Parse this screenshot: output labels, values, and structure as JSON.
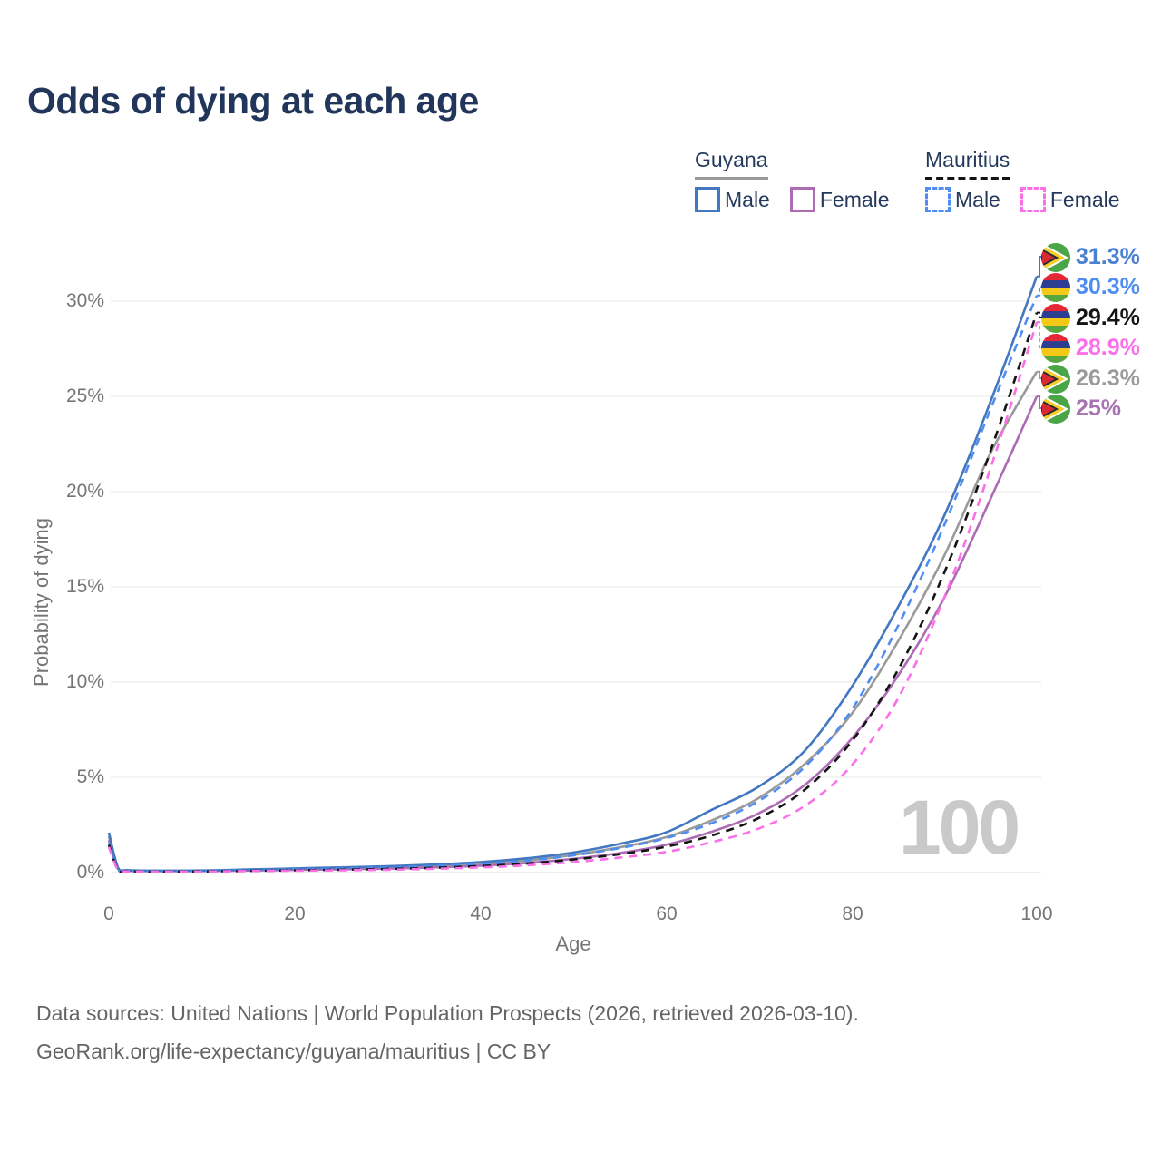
{
  "title": "Odds of dying at each age",
  "legend": {
    "guyana": {
      "label": "Guyana",
      "male_label": "Male",
      "female_label": "Female"
    },
    "mauritius": {
      "label": "Mauritius",
      "male_label": "Male",
      "female_label": "Female"
    }
  },
  "axes": {
    "y_title": "Probability of dying",
    "x_title": "Age",
    "y_tick_labels": [
      "0%",
      "5%",
      "10%",
      "15%",
      "20%",
      "25%",
      "30%"
    ],
    "x_tick_labels": [
      "0",
      "20",
      "40",
      "60",
      "80",
      "100"
    ]
  },
  "watermark": "100",
  "footer": {
    "line1": "Data sources: United Nations | World Population Prospects (2026, retrieved 2026-03-10).",
    "line2": "GeoRank.org/life-expectancy/guyana/mauritius | CC BY"
  },
  "colors": {
    "title_text": "#21365a",
    "legend_text": "#24395c",
    "axis_text": "#757575",
    "gridline": "#efefef",
    "zero_gridline": "#e7e7e7",
    "watermark": "#c9c9c9",
    "footer_text": "#656565"
  },
  "chart_data": {
    "type": "line",
    "title": "Odds of dying at each age",
    "xlabel": "Age",
    "ylabel": "Probability of dying",
    "x_range": [
      0,
      100
    ],
    "y_range_percent": [
      0,
      32
    ],
    "x_ticks": [
      0,
      20,
      40,
      60,
      80,
      100
    ],
    "y_ticks_percent": [
      0,
      5,
      10,
      15,
      20,
      25,
      30
    ],
    "grid": "horizontal only, every 5%",
    "legend_position": "top-right",
    "hovered_age_watermark": "100",
    "x_ages": [
      0,
      1,
      2,
      5,
      10,
      15,
      20,
      25,
      30,
      35,
      40,
      45,
      50,
      55,
      60,
      65,
      70,
      75,
      80,
      85,
      90,
      95,
      100
    ],
    "series": [
      {
        "name": "Guyana — Male",
        "country": "Guyana",
        "sex": "male",
        "style": "solid",
        "color": "#4277c2",
        "label_color": "#4a80d2",
        "flag": "guyana",
        "end_label": "31.3%",
        "end_value_percent": 31.3,
        "values_percent": [
          2.1,
          0.25,
          0.13,
          0.1,
          0.11,
          0.16,
          0.22,
          0.27,
          0.33,
          0.42,
          0.55,
          0.75,
          1.05,
          1.5,
          2.1,
          3.3,
          4.5,
          6.4,
          9.7,
          13.9,
          18.7,
          24.7,
          31.3
        ]
      },
      {
        "name": "Mauritius — Male",
        "country": "Mauritius",
        "sex": "male",
        "style": "dashed",
        "color": "#4f8df2",
        "label_color": "#4f8df2",
        "flag": "mauritius",
        "end_label": "30.3%",
        "end_value_percent": 30.3,
        "values_percent": [
          1.55,
          0.15,
          0.08,
          0.06,
          0.08,
          0.12,
          0.17,
          0.21,
          0.26,
          0.34,
          0.45,
          0.62,
          0.9,
          1.28,
          1.8,
          2.6,
          3.75,
          5.55,
          8.5,
          12.9,
          18.2,
          24.3,
          30.3
        ]
      },
      {
        "name": "Mauritius — Both sexes",
        "country": "Mauritius",
        "sex": "both",
        "style": "dashed",
        "color": "#141414",
        "label_color": "#141414",
        "flag": "mauritius",
        "end_label": "29.4%",
        "end_value_percent": 29.4,
        "values_percent": [
          1.45,
          0.13,
          0.07,
          0.05,
          0.06,
          0.09,
          0.12,
          0.15,
          0.19,
          0.25,
          0.34,
          0.47,
          0.68,
          0.96,
          1.35,
          1.95,
          2.85,
          4.35,
          6.85,
          10.6,
          15.7,
          22.1,
          29.4
        ]
      },
      {
        "name": "Mauritius — Female",
        "country": "Mauritius",
        "sex": "female",
        "style": "dashed",
        "color": "#fb6fe8",
        "label_color": "#fb6fe8",
        "flag": "mauritius",
        "end_label": "28.9%",
        "end_value_percent": 28.9,
        "values_percent": [
          1.35,
          0.12,
          0.06,
          0.05,
          0.05,
          0.08,
          0.1,
          0.12,
          0.15,
          0.2,
          0.27,
          0.38,
          0.55,
          0.78,
          1.08,
          1.6,
          2.3,
          3.5,
          5.6,
          9.1,
          14.4,
          21.2,
          28.9
        ]
      },
      {
        "name": "Guyana — Both sexes",
        "country": "Guyana",
        "sex": "both",
        "style": "solid",
        "color": "#9a9a9a",
        "label_color": "#9a9a9a",
        "flag": "guyana",
        "end_label": "26.3%",
        "end_value_percent": 26.3,
        "values_percent": [
          1.9,
          0.22,
          0.11,
          0.09,
          0.1,
          0.13,
          0.18,
          0.22,
          0.27,
          0.34,
          0.45,
          0.63,
          0.92,
          1.32,
          1.85,
          2.75,
          3.9,
          5.7,
          8.3,
          12.1,
          16.6,
          22.0,
          26.3
        ]
      },
      {
        "name": "Guyana — Female",
        "country": "Guyana",
        "sex": "female",
        "style": "solid",
        "color": "#ac6cb4",
        "label_color": "#a873b3",
        "flag": "guyana",
        "end_label": "25%",
        "end_value_percent": 25.0,
        "values_percent": [
          1.7,
          0.19,
          0.1,
          0.08,
          0.08,
          0.11,
          0.14,
          0.17,
          0.21,
          0.27,
          0.36,
          0.5,
          0.72,
          1.02,
          1.45,
          2.15,
          3.1,
          4.6,
          7.0,
          10.3,
          14.4,
          19.6,
          25.0
        ]
      }
    ]
  }
}
